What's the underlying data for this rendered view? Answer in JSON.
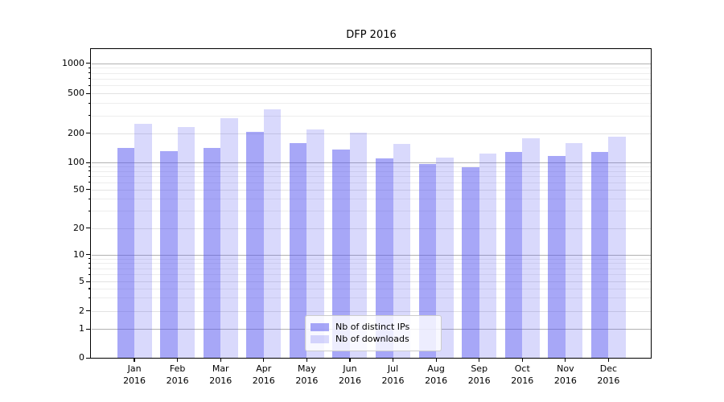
{
  "title": "DFP 2016",
  "colors": {
    "bar_ips": "rgba(80,80,240,0.5)",
    "bar_downloads": "rgba(80,80,240,0.22)",
    "grid_major": "#b2b2b2",
    "grid_mid": "#e2e2e2",
    "grid_minor": "#ededed",
    "spine": "#000000",
    "background": "#ffffff"
  },
  "chart_data": {
    "type": "bar",
    "title": "DFP 2016",
    "categories": [
      "Jan 2016",
      "Feb 2016",
      "Mar 2016",
      "Apr 2016",
      "May 2016",
      "Jun 2016",
      "Jul 2016",
      "Aug 2016",
      "Sep 2016",
      "Oct 2016",
      "Nov 2016",
      "Dec 2016"
    ],
    "series": [
      {
        "name": "Nb of distinct IPs",
        "values": [
          141,
          130,
          140,
          208,
          157,
          135,
          111,
          96,
          88,
          128,
          117,
          128
        ]
      },
      {
        "name": "Nb of downloads",
        "values": [
          250,
          232,
          283,
          345,
          220,
          203,
          154,
          113,
          124,
          176,
          158,
          183
        ]
      }
    ],
    "yscale": "symlog",
    "y_ticks": [
      0,
      1,
      2,
      5,
      10,
      20,
      50,
      100,
      200,
      500,
      1000
    ],
    "ylim": [
      0,
      1400
    ],
    "xlabel": "",
    "ylabel": "",
    "grid": true,
    "legend_position": "lower center"
  }
}
